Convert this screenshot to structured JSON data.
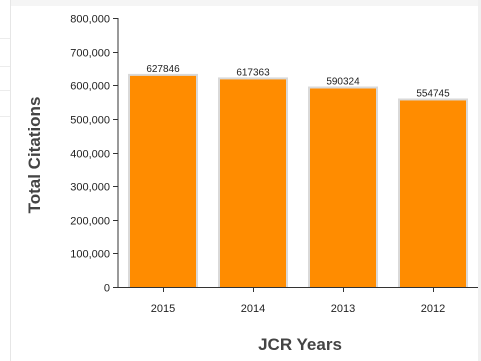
{
  "chart_data": {
    "type": "bar",
    "categories": [
      "2015",
      "2014",
      "2013",
      "2012"
    ],
    "values": [
      627846,
      617363,
      590324,
      554745
    ],
    "data_labels": [
      "627846",
      "617363",
      "590324",
      "554745"
    ],
    "xlabel": "JCR Years",
    "ylabel": "Total Citations",
    "ylim": [
      0,
      800000
    ],
    "yticks": [
      0,
      100000,
      200000,
      300000,
      400000,
      500000,
      600000,
      700000,
      800000
    ],
    "ytick_labels": [
      "0",
      "100,000",
      "200,000",
      "300,000",
      "400,000",
      "500,000",
      "600,000",
      "700,000",
      "800,000"
    ],
    "grid": false,
    "colors": {
      "bar": "#ff8c00",
      "bar_shadow": "#d9d9d9",
      "axis": "#333333"
    }
  }
}
